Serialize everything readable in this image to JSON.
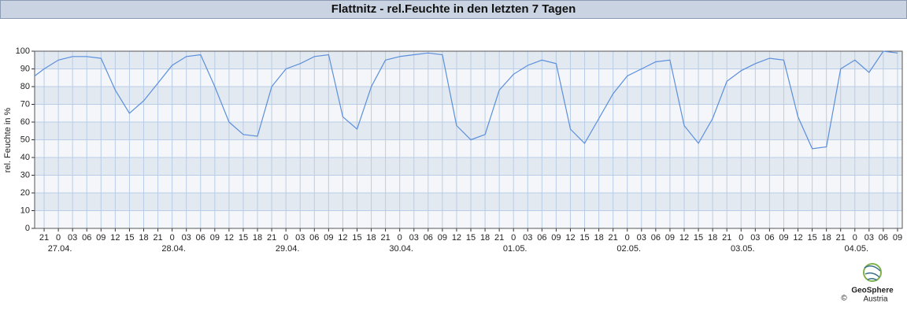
{
  "chart_data": {
    "type": "line",
    "title": "Flattnitz - rel.Feuchte in den letzten 7 Tagen",
    "y_label": "rel. Feuchte in %",
    "logo": {
      "name": "GeoSphere",
      "sub": "Austria",
      "copyright": "©"
    },
    "xlim": [
      "26.04. 19",
      "04.05. 10"
    ],
    "ylim": [
      0,
      100
    ],
    "yticks": [
      0,
      10,
      20,
      30,
      40,
      50,
      60,
      70,
      80,
      90,
      100
    ],
    "grid": true,
    "xticks": [
      {
        "value": "26.04. 21",
        "label": "21"
      },
      {
        "value": "27.04. 00",
        "label": "0"
      },
      {
        "value": "27.04. 03",
        "label": "03"
      },
      {
        "value": "27.04. 06",
        "label": "06"
      },
      {
        "value": "27.04. 09",
        "label": "09"
      },
      {
        "value": "27.04. 12",
        "label": "12"
      },
      {
        "value": "27.04. 15",
        "label": "15"
      },
      {
        "value": "27.04. 18",
        "label": "18"
      },
      {
        "value": "27.04. 21",
        "label": "21"
      },
      {
        "value": "28.04. 00",
        "label": "0"
      },
      {
        "value": "28.04. 03",
        "label": "03"
      },
      {
        "value": "28.04. 06",
        "label": "06"
      },
      {
        "value": "28.04. 09",
        "label": "09"
      },
      {
        "value": "28.04. 12",
        "label": "12"
      },
      {
        "value": "28.04. 15",
        "label": "15"
      },
      {
        "value": "28.04. 18",
        "label": "18"
      },
      {
        "value": "28.04. 21",
        "label": "21"
      },
      {
        "value": "29.04. 00",
        "label": "0"
      },
      {
        "value": "29.04. 03",
        "label": "03"
      },
      {
        "value": "29.04. 06",
        "label": "06"
      },
      {
        "value": "29.04. 09",
        "label": "09"
      },
      {
        "value": "29.04. 12",
        "label": "12"
      },
      {
        "value": "29.04. 15",
        "label": "15"
      },
      {
        "value": "29.04. 18",
        "label": "18"
      },
      {
        "value": "29.04. 21",
        "label": "21"
      },
      {
        "value": "30.04. 00",
        "label": "0"
      },
      {
        "value": "30.04. 03",
        "label": "03"
      },
      {
        "value": "30.04. 06",
        "label": "06"
      },
      {
        "value": "30.04. 09",
        "label": "09"
      },
      {
        "value": "30.04. 12",
        "label": "12"
      },
      {
        "value": "30.04. 15",
        "label": "15"
      },
      {
        "value": "30.04. 18",
        "label": "18"
      },
      {
        "value": "30.04. 21",
        "label": "21"
      },
      {
        "value": "01.05. 00",
        "label": "0"
      },
      {
        "value": "01.05. 03",
        "label": "03"
      },
      {
        "value": "01.05. 06",
        "label": "06"
      },
      {
        "value": "01.05. 09",
        "label": "09"
      },
      {
        "value": "01.05. 12",
        "label": "12"
      },
      {
        "value": "01.05. 15",
        "label": "15"
      },
      {
        "value": "01.05. 18",
        "label": "18"
      },
      {
        "value": "01.05. 21",
        "label": "21"
      },
      {
        "value": "02.05. 00",
        "label": "0"
      },
      {
        "value": "02.05. 03",
        "label": "03"
      },
      {
        "value": "02.05. 06",
        "label": "06"
      },
      {
        "value": "02.05. 09",
        "label": "09"
      },
      {
        "value": "02.05. 12",
        "label": "12"
      },
      {
        "value": "02.05. 15",
        "label": "15"
      },
      {
        "value": "02.05. 18",
        "label": "18"
      },
      {
        "value": "02.05. 21",
        "label": "21"
      },
      {
        "value": "03.05. 00",
        "label": "0"
      },
      {
        "value": "03.05. 03",
        "label": "03"
      },
      {
        "value": "03.05. 06",
        "label": "06"
      },
      {
        "value": "03.05. 09",
        "label": "09"
      },
      {
        "value": "03.05. 12",
        "label": "12"
      },
      {
        "value": "03.05. 15",
        "label": "15"
      },
      {
        "value": "03.05. 18",
        "label": "18"
      },
      {
        "value": "03.05. 21",
        "label": "21"
      },
      {
        "value": "04.05. 00",
        "label": "0"
      },
      {
        "value": "04.05. 03",
        "label": "03"
      },
      {
        "value": "04.05. 06",
        "label": "06"
      },
      {
        "value": "04.05. 09",
        "label": "09"
      }
    ],
    "date_labels": [
      {
        "value": "27.04. 00",
        "label": "27.04."
      },
      {
        "value": "28.04. 00",
        "label": "28.04."
      },
      {
        "value": "29.04. 00",
        "label": "29.04."
      },
      {
        "value": "30.04. 00",
        "label": "30.04."
      },
      {
        "value": "01.05. 00",
        "label": "01.05."
      },
      {
        "value": "02.05. 00",
        "label": "02.05."
      },
      {
        "value": "03.05. 00",
        "label": "03.05."
      },
      {
        "value": "04.05. 00",
        "label": "04.05."
      }
    ],
    "x": [
      "26.04. 19",
      "26.04. 21",
      "27.04. 00",
      "27.04. 03",
      "27.04. 06",
      "27.04. 09",
      "27.04. 12",
      "27.04. 15",
      "27.04. 18",
      "27.04. 21",
      "28.04. 00",
      "28.04. 03",
      "28.04. 06",
      "28.04. 09",
      "28.04. 12",
      "28.04. 15",
      "28.04. 18",
      "28.04. 21",
      "29.04. 00",
      "29.04. 03",
      "29.04. 06",
      "29.04. 09",
      "29.04. 12",
      "29.04. 15",
      "29.04. 18",
      "29.04. 21",
      "30.04. 00",
      "30.04. 03",
      "30.04. 06",
      "30.04. 09",
      "30.04. 12",
      "30.04. 15",
      "30.04. 18",
      "30.04. 21",
      "01.05. 00",
      "01.05. 03",
      "01.05. 06",
      "01.05. 09",
      "01.05. 12",
      "01.05. 15",
      "01.05. 18",
      "01.05. 21",
      "02.05. 00",
      "02.05. 03",
      "02.05. 06",
      "02.05. 09",
      "02.05. 12",
      "02.05. 15",
      "02.05. 18",
      "02.05. 21",
      "03.05. 00",
      "03.05. 03",
      "03.05. 06",
      "03.05. 09",
      "03.05. 12",
      "03.05. 15",
      "03.05. 18",
      "03.05. 21",
      "04.05. 00",
      "04.05. 03",
      "04.05. 06",
      "04.05. 09"
    ],
    "series": [
      {
        "name": "rel. Feuchte",
        "color": "#5b8fdc",
        "values": [
          86,
          90,
          95,
          97,
          97,
          96,
          78,
          65,
          72,
          82,
          92,
          97,
          98,
          80,
          60,
          53,
          52,
          80,
          90,
          93,
          97,
          98,
          63,
          56,
          80,
          95,
          97,
          98,
          99,
          98,
          58,
          50,
          53,
          78,
          87,
          92,
          95,
          93,
          56,
          48,
          62,
          76,
          86,
          90,
          94,
          95,
          58,
          48,
          62,
          83,
          89,
          93,
          96,
          95,
          63,
          45,
          46,
          90,
          95,
          88,
          100,
          99
        ]
      }
    ]
  }
}
